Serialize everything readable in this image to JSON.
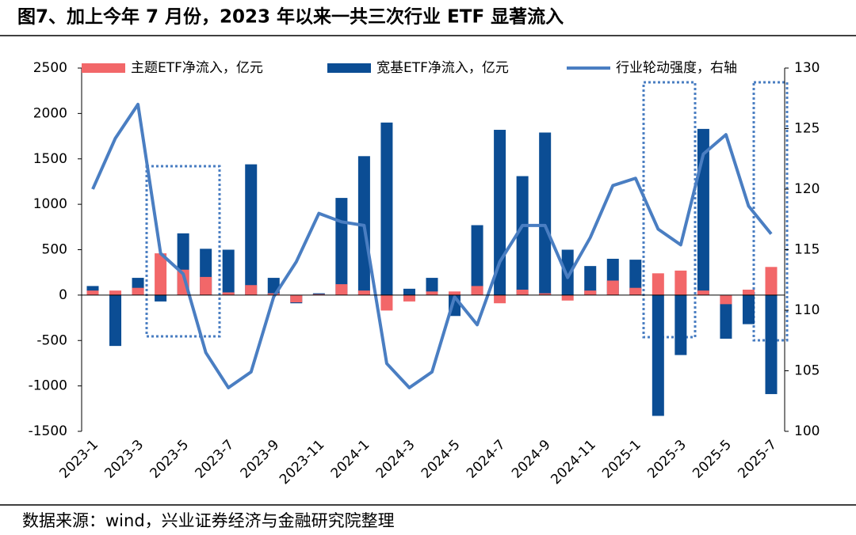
{
  "chart_data": {
    "type": "combo",
    "title": "图7、加上今年 7 月份，2023 年以来一共三次行业 ETF 显著流入",
    "source": "数据来源：wind，兴业证券经济与金融研究院整理",
    "categories": [
      "2023-1",
      null,
      "2023-3",
      null,
      "2023-5",
      null,
      "2023-7",
      null,
      "2023-9",
      null,
      "2023-11",
      null,
      "2024-1",
      null,
      "2024-3",
      null,
      "2024-5",
      null,
      "2024-7",
      null,
      "2024-9",
      null,
      "2024-11",
      null,
      "2025-1",
      null,
      "2025-3",
      null,
      "2025-5",
      null,
      "2025-7"
    ],
    "series": [
      {
        "name": "主题ETF净流入，亿元",
        "type": "bar",
        "color": "#f26769",
        "values": [
          50,
          50,
          80,
          460,
          280,
          200,
          30,
          110,
          20,
          -80,
          10,
          120,
          50,
          -170,
          -70,
          40,
          40,
          100,
          -90,
          60,
          20,
          -60,
          50,
          160,
          80,
          240,
          270,
          50,
          -100,
          60,
          310
        ]
      },
      {
        "name": "宽基ETF净流入，亿元",
        "type": "bar",
        "color": "#0b4d94",
        "values": [
          100,
          -560,
          190,
          -70,
          680,
          510,
          500,
          1440,
          190,
          -90,
          20,
          1070,
          1530,
          1900,
          70,
          190,
          -230,
          770,
          1820,
          1310,
          1790,
          500,
          320,
          400,
          390,
          -1330,
          -660,
          1830,
          -480,
          -320,
          -1090
        ]
      },
      {
        "name": "行业轮动强度，右轴",
        "type": "line",
        "axis": "y2",
        "color": "#4a7ec2",
        "values": [
          120,
          124.2,
          127,
          114.7,
          113,
          106.5,
          103.6,
          104.9,
          111.1,
          114,
          118,
          117.3,
          117,
          105.6,
          103.6,
          104.9,
          111.1,
          108.8,
          114,
          117,
          117,
          112.7,
          116,
          120.3,
          120.9,
          116.7,
          115.4,
          122.9,
          124.5,
          118.6,
          116.3
        ]
      }
    ],
    "ylim": [
      -1500,
      2500
    ],
    "yticks": [
      -1500,
      -1000,
      -500,
      0,
      500,
      1000,
      1500,
      2000,
      2500
    ],
    "y2lim": [
      100,
      130
    ],
    "y2ticks": [
      100,
      105,
      110,
      115,
      120,
      125,
      130
    ],
    "legend": "top"
  }
}
